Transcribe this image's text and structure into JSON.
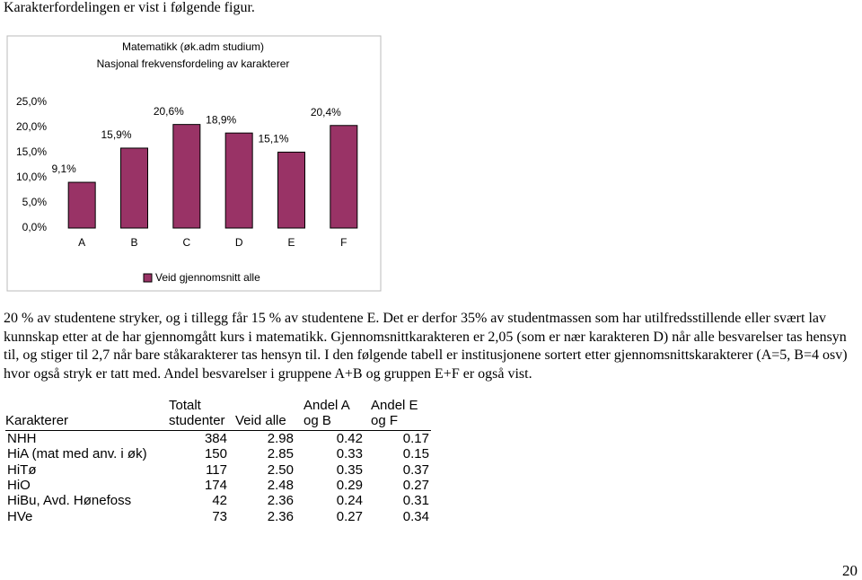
{
  "intro": "Karakterfordelingen er vist i følgende figur.",
  "chart_data": {
    "type": "bar",
    "title": [
      "Matematikk (øk.adm studium)",
      "Nasjonal frekvensfordeling av karakterer"
    ],
    "categories": [
      "A",
      "B",
      "C",
      "D",
      "E",
      "F"
    ],
    "series": [
      {
        "name": "Veid gjennomsnitt alle",
        "color": "#993366",
        "values": [
          9.1,
          15.9,
          20.6,
          18.9,
          15.1,
          20.4
        ],
        "value_labels": [
          "9,1%",
          "15,9%",
          "20,6%",
          "18,9%",
          "15,1%",
          "20,4%"
        ]
      }
    ],
    "ylim": [
      0,
      25
    ],
    "yticks": [
      {
        "value": 0,
        "label": "0,0%"
      },
      {
        "value": 5,
        "label": "5,0%"
      },
      {
        "value": 10,
        "label": "10,0%"
      },
      {
        "value": 15,
        "label": "15,0%"
      },
      {
        "value": 20,
        "label": "20,0%"
      },
      {
        "value": 25,
        "label": "25,0%"
      }
    ],
    "grid": false,
    "legend": "bottom"
  },
  "paragraph": "20 % av studentene stryker, og i tillegg får 15 % av studentene E. Det er derfor 35% av studentmassen som har utilfredsstillende eller svært lav kunnskap etter at de har gjennomgått kurs i matematikk. Gjennomsnittkarakteren er 2,05 (som er nær karakteren D) når alle besvarelser tas hensyn til, og stiger til 2,7 når bare ståkarakterer tas hensyn til. I den følgende tabell er institusjonene sortert etter gjennomsnittskarakterer (A=5, B=4 osv) hvor også stryk er tatt med. Andel besvarelser i gruppene A+B og gruppen E+F er også vist.",
  "table": {
    "header": [
      [
        "Karakterer"
      ],
      [
        "Totalt",
        "studenter"
      ],
      [
        "Veid alle"
      ],
      [
        "Andel A",
        "og B"
      ],
      [
        "Andel E",
        "og F"
      ]
    ],
    "rows": [
      [
        "NHH",
        "384",
        "2.98",
        "0.42",
        "0.17"
      ],
      [
        "HiA (mat med anv. i øk)",
        "150",
        "2.85",
        "0.33",
        "0.15"
      ],
      [
        "HiTø",
        "117",
        "2.50",
        "0.35",
        "0.37"
      ],
      [
        "HiO",
        "174",
        "2.48",
        "0.29",
        "0.27"
      ],
      [
        "HiBu, Avd. Hønefoss",
        "42",
        "2.36",
        "0.24",
        "0.31"
      ],
      [
        "HVe",
        "73",
        "2.36",
        "0.27",
        "0.34"
      ]
    ]
  },
  "page_number": "20"
}
